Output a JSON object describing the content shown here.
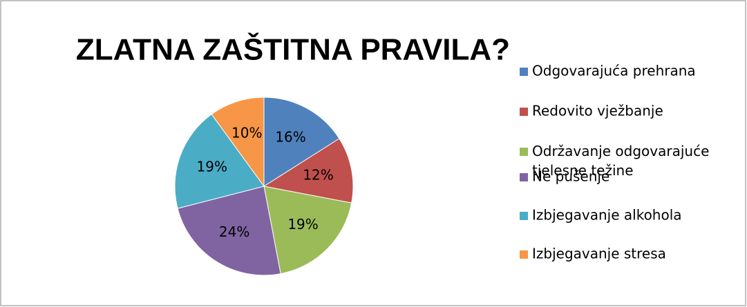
{
  "chart_data": {
    "type": "pie",
    "title": "ZLATNA ZAŠTITNA PRAVILA?",
    "categories": [
      "Odgovarajuća prehrana",
      "Redovito vježbanje",
      "Održavanje odgovarajuće tjelesne težine",
      "Ne pušenje",
      "Izbjegavanje alkohola",
      "Izbjegavanje stresa"
    ],
    "values": [
      16,
      12,
      19,
      24,
      19,
      10
    ],
    "value_labels": [
      "16%",
      "12%",
      "19%",
      "24%",
      "19%",
      "10%"
    ],
    "colors": [
      "#4f81bd",
      "#c0504d",
      "#9bbb59",
      "#8064a2",
      "#4bacc6",
      "#f79646"
    ],
    "legend": "right"
  }
}
